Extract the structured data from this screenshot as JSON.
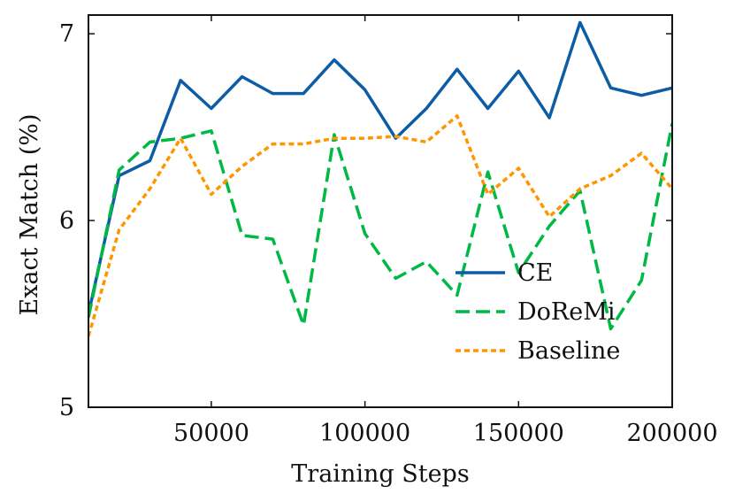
{
  "chart_data": {
    "type": "line",
    "title": "",
    "xlabel": "Training Steps",
    "ylabel": "Exact Match (%)",
    "xlim": [
      10000,
      200000
    ],
    "ylim": [
      5,
      7.1
    ],
    "xticks": [
      50000,
      100000,
      150000,
      200000
    ],
    "xtick_labels": [
      "50000",
      "100000",
      "150000",
      "200000"
    ],
    "yticks": [
      5,
      6,
      7
    ],
    "ytick_labels": [
      "5",
      "6",
      "7"
    ],
    "grid": false,
    "legend_position": "lower-right",
    "x": [
      10000,
      20000,
      30000,
      40000,
      50000,
      60000,
      70000,
      80000,
      90000,
      100000,
      110000,
      120000,
      130000,
      140000,
      150000,
      160000,
      170000,
      180000,
      190000,
      200000
    ],
    "series": [
      {
        "name": "CE",
        "color": "#0C5DA5",
        "dash": "solid",
        "values": [
          5.5,
          6.24,
          6.32,
          6.75,
          6.6,
          6.77,
          6.68,
          6.68,
          6.86,
          6.7,
          6.44,
          6.6,
          6.81,
          6.6,
          6.8,
          6.55,
          7.06,
          6.71,
          6.67,
          6.71
        ]
      },
      {
        "name": "DoReMi",
        "color": "#00B945",
        "dash": "dashed",
        "values": [
          5.48,
          6.27,
          6.42,
          6.44,
          6.48,
          5.92,
          5.9,
          5.44,
          6.46,
          5.93,
          5.69,
          5.78,
          5.6,
          6.26,
          5.72,
          5.97,
          6.16,
          5.42,
          5.68,
          6.52
        ]
      },
      {
        "name": "Baseline",
        "color": "#FF9500",
        "dash": "dotted",
        "values": [
          5.38,
          5.95,
          6.17,
          6.44,
          6.14,
          6.29,
          6.41,
          6.41,
          6.44,
          6.44,
          6.45,
          6.42,
          6.56,
          6.14,
          6.28,
          6.02,
          6.17,
          6.24,
          6.36,
          6.17
        ]
      }
    ]
  }
}
